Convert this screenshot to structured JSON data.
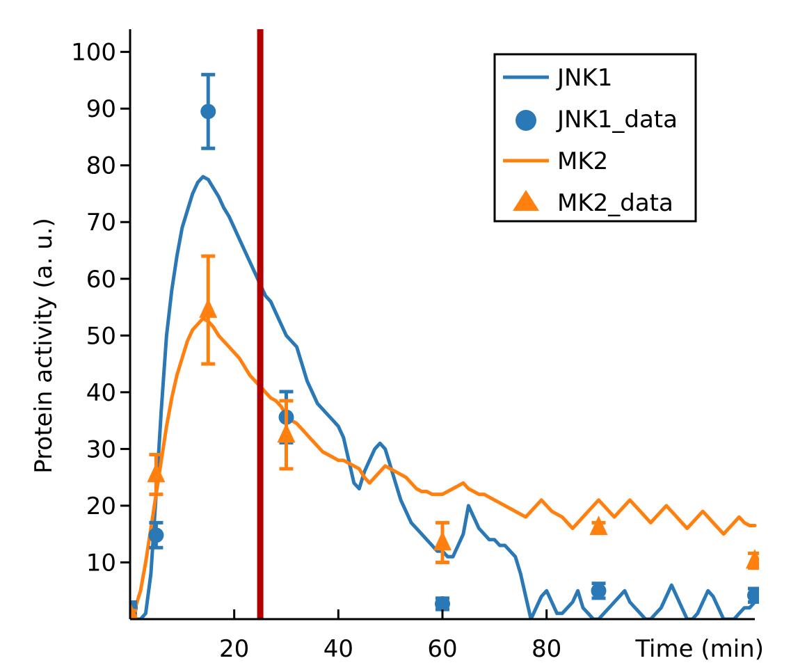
{
  "chart_data": {
    "type": "line",
    "xlabel": "Time (min)",
    "ylabel": "Protein activity (a. u.)",
    "xlim": [
      0,
      120
    ],
    "ylim": [
      0,
      104
    ],
    "x_ticks": [
      20,
      40,
      60,
      80
    ],
    "y_ticks": [
      10,
      20,
      30,
      40,
      50,
      60,
      70,
      80,
      90,
      100
    ],
    "grid": false,
    "legend_position": "top-right",
    "vertical_line": {
      "x": 25,
      "color": "#b00000"
    },
    "series": [
      {
        "name": "JNK1",
        "kind": "line",
        "color": "#2a78b5",
        "x": [
          0,
          1,
          2,
          3,
          4,
          5,
          6,
          7,
          8,
          9,
          10,
          11,
          12,
          13,
          14,
          15,
          16,
          17,
          18,
          19,
          20,
          21,
          22,
          23,
          24,
          25,
          26,
          27,
          28,
          29,
          30,
          31,
          32,
          33,
          34,
          35,
          36,
          37,
          38,
          39,
          40,
          41,
          42,
          43,
          44,
          45,
          46,
          47,
          48,
          49,
          50,
          51,
          52,
          53,
          54,
          55,
          56,
          57,
          58,
          59,
          60,
          61,
          62,
          63,
          64,
          65,
          66,
          67,
          68,
          69,
          70,
          71,
          72,
          73,
          74,
          75,
          76,
          77,
          78,
          79,
          80,
          81,
          82,
          83,
          84,
          85,
          86,
          87,
          88,
          89,
          90,
          91,
          92,
          93,
          94,
          95,
          96,
          97,
          98,
          99,
          100,
          101,
          102,
          103,
          104,
          105,
          106,
          107,
          108,
          109,
          110,
          111,
          112,
          113,
          114,
          115,
          116,
          117,
          118,
          119,
          120
        ],
        "y": [
          0,
          0,
          0,
          1,
          8,
          22,
          37,
          50,
          58,
          64,
          69,
          72,
          75,
          77,
          78,
          77.5,
          76,
          74.5,
          72.5,
          71,
          69,
          67,
          65,
          63,
          61,
          59,
          57,
          56,
          54,
          52,
          50,
          49,
          48,
          45,
          42,
          40,
          38,
          37,
          36,
          35,
          34,
          32,
          28,
          24,
          23,
          26,
          28,
          30,
          31,
          30,
          27,
          24,
          21,
          19,
          17,
          16,
          15,
          14,
          13,
          12,
          12,
          11,
          11,
          13,
          15,
          20,
          18,
          16,
          15,
          14,
          14,
          13,
          13,
          12,
          11,
          8,
          4,
          0,
          2,
          4,
          5,
          3,
          1,
          1,
          2,
          3,
          5,
          2,
          1,
          0,
          0,
          1,
          2,
          3,
          4,
          5,
          3,
          2,
          1,
          0,
          0,
          1,
          2,
          4,
          6,
          4,
          2,
          0,
          0,
          1,
          3,
          5,
          4,
          2,
          0,
          0,
          0,
          1,
          2,
          2,
          3
        ]
      },
      {
        "name": "JNK1_data",
        "kind": "points",
        "marker": "circle",
        "color": "#2a78b5",
        "x": [
          0,
          5,
          15,
          30,
          60,
          90,
          120
        ],
        "y": [
          2,
          14.8,
          89.5,
          35.6,
          2.7,
          5,
          4.2
        ],
        "err": [
          1,
          2.2,
          6.5,
          4.5,
          1,
          1.3,
          1.2
        ]
      },
      {
        "name": "MK2",
        "kind": "line",
        "color": "#ff800e",
        "x": [
          0,
          1,
          2,
          3,
          4,
          5,
          6,
          7,
          8,
          9,
          10,
          11,
          12,
          13,
          14,
          15,
          16,
          17,
          18,
          19,
          20,
          21,
          22,
          23,
          24,
          25,
          26,
          27,
          28,
          29,
          30,
          31,
          32,
          33,
          34,
          35,
          36,
          37,
          38,
          39,
          40,
          41,
          42,
          43,
          44,
          45,
          46,
          47,
          48,
          49,
          50,
          51,
          52,
          53,
          54,
          55,
          56,
          57,
          58,
          59,
          60,
          61,
          62,
          63,
          64,
          65,
          66,
          67,
          68,
          69,
          70,
          71,
          72,
          73,
          74,
          75,
          76,
          77,
          78,
          79,
          80,
          81,
          82,
          83,
          84,
          85,
          86,
          87,
          88,
          89,
          90,
          91,
          92,
          93,
          94,
          95,
          96,
          97,
          98,
          99,
          100,
          101,
          102,
          103,
          104,
          105,
          106,
          107,
          108,
          109,
          110,
          111,
          112,
          113,
          114,
          115,
          116,
          117,
          118,
          119,
          120
        ],
        "y": [
          1,
          2,
          5,
          10,
          16,
          22,
          28,
          34,
          39,
          43,
          46,
          49,
          51,
          52,
          53,
          52.5,
          51.5,
          50,
          49,
          48,
          47,
          46,
          44.5,
          43,
          42,
          41,
          40,
          39,
          38.5,
          37.5,
          36,
          35,
          34.5,
          33.5,
          32.5,
          31.5,
          30.5,
          29.5,
          29,
          28.5,
          28,
          28,
          27.5,
          27,
          26.5,
          25,
          24,
          25,
          26,
          27,
          26.5,
          26,
          25.5,
          25,
          24,
          23,
          22.5,
          22.5,
          22,
          22,
          22,
          22.5,
          23,
          23.5,
          24,
          23,
          22.5,
          22,
          22,
          21.5,
          21,
          20.5,
          20,
          19.5,
          19,
          18.5,
          18,
          19,
          20,
          21,
          20,
          19,
          18.5,
          18,
          17,
          16,
          17,
          18,
          19,
          20,
          21,
          20,
          19,
          18,
          19,
          20,
          21,
          20,
          19,
          18,
          17,
          18,
          19,
          20,
          19,
          18,
          17,
          16,
          17,
          18,
          19,
          18,
          17,
          16,
          15,
          16,
          17,
          18,
          17,
          16.5,
          16.5
        ]
      },
      {
        "name": "MK2_data",
        "kind": "points",
        "marker": "triangle",
        "color": "#ff800e",
        "x": [
          0,
          5,
          15,
          30,
          60,
          90,
          120
        ],
        "y": [
          1,
          25.5,
          54.5,
          32.5,
          13.5,
          16.2,
          10.3
        ],
        "err": [
          0.5,
          3.5,
          9.5,
          6,
          3.5,
          0.8,
          1.3
        ]
      }
    ]
  }
}
